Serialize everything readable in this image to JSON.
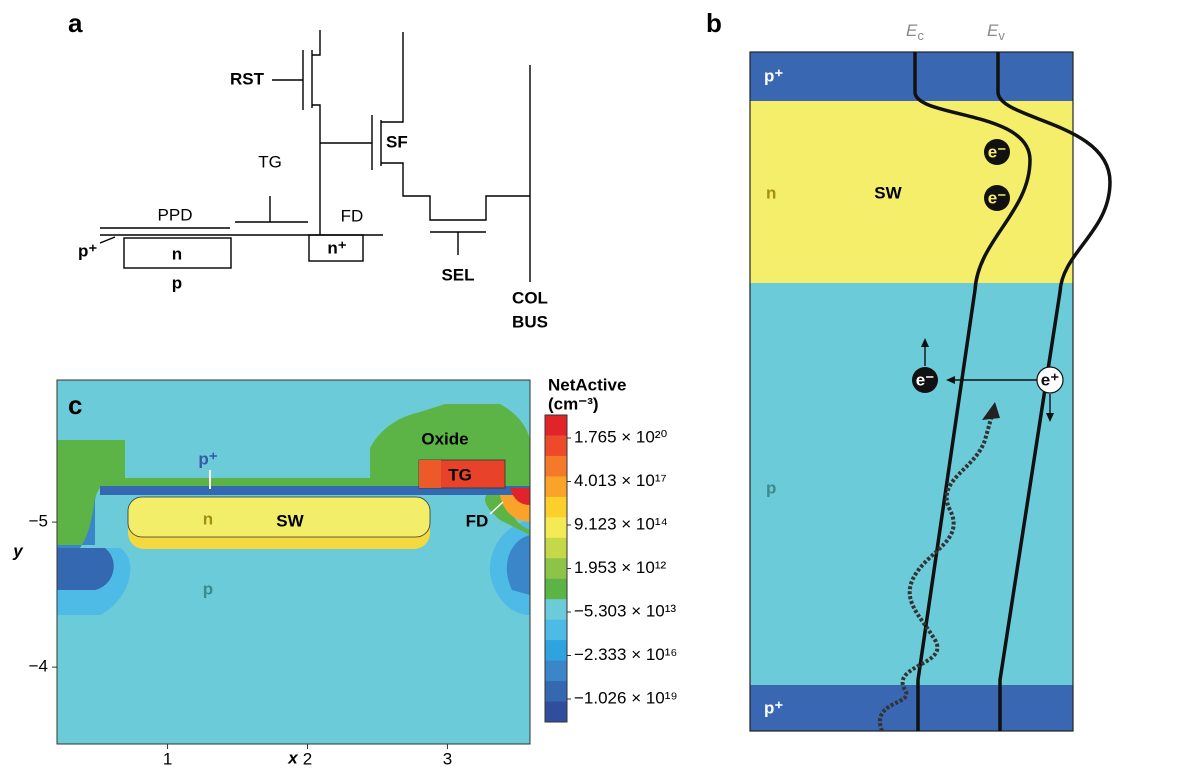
{
  "panels": {
    "a": {
      "letter": "a",
      "labels": {
        "rst": "RST",
        "sf": "SF",
        "tg": "TG",
        "ppd": "PPD",
        "fd": "FD",
        "p_plus": "p⁺",
        "n": "n",
        "n_plus": "n⁺",
        "p": "p",
        "sel": "SEL",
        "col": "COL",
        "bus": "BUS"
      }
    },
    "b": {
      "letter": "b",
      "ec": {
        "main": "E",
        "sub": "c"
      },
      "ev": {
        "main": "E",
        "sub": "v"
      },
      "labels": {
        "p_plus_top": "p⁺",
        "n": "n",
        "sw": "SW",
        "electron_1": "e⁻",
        "electron_2": "e⁻",
        "electron_3": "e⁻",
        "hole": "e⁺",
        "p": "p",
        "p_plus_bottom": "p⁺"
      }
    },
    "c": {
      "letter": "c",
      "labels": {
        "oxide": "Oxide",
        "p_plus": "p⁺",
        "tg": "TG",
        "n": "n",
        "sw": "SW",
        "fd": "FD",
        "p": "p"
      },
      "x_label": "x",
      "y_label": "y",
      "xlim": [
        0.21,
        3.59
      ],
      "xticks": [
        1,
        2,
        3
      ],
      "ylim": [
        -5.98,
        -3.47
      ],
      "y_inverted": true,
      "yticks": [
        {
          "value": -5,
          "label": "−5"
        },
        {
          "value": -4,
          "label": "−4"
        }
      ],
      "colorbar": {
        "title": "NetActive",
        "unit": "(cm⁻³)",
        "labels": [
          "1.765 × 10²⁰",
          "4.013 × 10¹⁷",
          "9.123 × 10¹⁴",
          "1.953 × 10¹²",
          "−5.303 × 10¹³",
          "−2.333 × 10¹⁶",
          "−1.026 × 10¹⁹"
        ],
        "colors": [
          "#e0242a",
          "#ec4a2a",
          "#f47a2a",
          "#f9a32a",
          "#fcd02c",
          "#f3ea55",
          "#c4d84a",
          "#8cc44a",
          "#5db446",
          "#6bcbd8",
          "#4ebbe6",
          "#2fa2e0",
          "#3a86c8",
          "#3468b0",
          "#2f4e9e"
        ]
      }
    }
  }
}
